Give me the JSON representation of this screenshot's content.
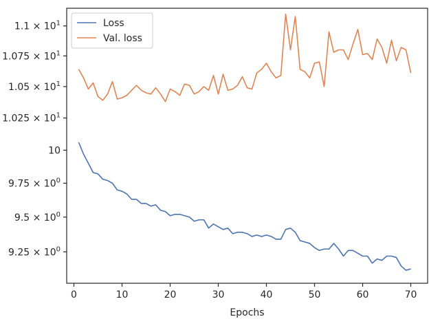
{
  "chart_data": {
    "type": "line",
    "title": "",
    "xlabel": "Epochs",
    "ylabel": "",
    "xlim": [
      -1.5,
      73.5
    ],
    "ylim": [
      9.03,
      11.15
    ],
    "y_scale": "log",
    "grid": false,
    "legend_position": "top-left",
    "x_ticks": [
      0,
      10,
      20,
      30,
      40,
      50,
      60,
      70
    ],
    "x_tick_labels": [
      "0",
      "10",
      "20",
      "30",
      "40",
      "50",
      "60",
      "70"
    ],
    "y_ticks": [
      9.25,
      9.5,
      9.75,
      10,
      10.25,
      10.5,
      10.75,
      11.0
    ],
    "y_tick_labels": [
      "9.25 × 10^0",
      "9.5 × 10^0",
      "9.75 × 10^0",
      "10",
      "1.025 × 10^1",
      "1.05 × 10^1",
      "1.075 × 10^1",
      "1.1 × 10^1"
    ],
    "series": [
      {
        "name": "Loss",
        "color": "#4c72b0",
        "x": [
          1,
          2,
          3,
          4,
          5,
          6,
          7,
          8,
          9,
          10,
          11,
          12,
          13,
          14,
          15,
          16,
          17,
          18,
          19,
          20,
          21,
          22,
          23,
          24,
          25,
          26,
          27,
          28,
          29,
          30,
          31,
          32,
          33,
          34,
          35,
          36,
          37,
          38,
          39,
          40,
          41,
          42,
          43,
          44,
          45,
          46,
          47,
          48,
          49,
          50,
          51,
          52,
          53,
          54,
          55,
          56,
          57,
          58,
          59,
          60,
          61,
          62,
          63,
          64,
          65,
          66,
          67,
          68,
          69,
          70
        ],
        "values": [
          10.06,
          9.97,
          9.9,
          9.83,
          9.82,
          9.78,
          9.77,
          9.75,
          9.7,
          9.69,
          9.67,
          9.63,
          9.63,
          9.6,
          9.6,
          9.58,
          9.59,
          9.55,
          9.54,
          9.51,
          9.52,
          9.52,
          9.51,
          9.5,
          9.47,
          9.48,
          9.48,
          9.42,
          9.45,
          9.43,
          9.41,
          9.42,
          9.38,
          9.39,
          9.39,
          9.38,
          9.36,
          9.37,
          9.36,
          9.37,
          9.36,
          9.34,
          9.34,
          9.41,
          9.42,
          9.39,
          9.33,
          9.32,
          9.31,
          9.28,
          9.26,
          9.27,
          9.27,
          9.31,
          9.27,
          9.22,
          9.26,
          9.26,
          9.24,
          9.22,
          9.22,
          9.17,
          9.2,
          9.19,
          9.22,
          9.22,
          9.21,
          9.15,
          9.12,
          9.13
        ]
      },
      {
        "name": "Val. loss",
        "color": "#dd8452",
        "x": [
          1,
          2,
          3,
          4,
          5,
          6,
          7,
          8,
          9,
          10,
          11,
          12,
          13,
          14,
          15,
          16,
          17,
          18,
          19,
          20,
          21,
          22,
          23,
          24,
          25,
          26,
          27,
          28,
          29,
          30,
          31,
          32,
          33,
          34,
          35,
          36,
          37,
          38,
          39,
          40,
          41,
          42,
          43,
          44,
          45,
          46,
          47,
          48,
          49,
          50,
          51,
          52,
          53,
          54,
          55,
          56,
          57,
          58,
          59,
          60,
          61,
          62,
          63,
          64,
          65,
          66,
          67,
          68,
          69,
          70
        ],
        "values": [
          10.64,
          10.57,
          10.48,
          10.53,
          10.42,
          10.39,
          10.44,
          10.54,
          10.4,
          10.41,
          10.43,
          10.47,
          10.51,
          10.47,
          10.45,
          10.44,
          10.49,
          10.44,
          10.38,
          10.48,
          10.46,
          10.43,
          10.52,
          10.51,
          10.44,
          10.46,
          10.5,
          10.47,
          10.59,
          10.44,
          10.6,
          10.47,
          10.48,
          10.51,
          10.58,
          10.49,
          10.48,
          10.61,
          10.64,
          10.69,
          10.62,
          10.57,
          10.59,
          11.1,
          10.8,
          11.08,
          10.64,
          10.62,
          10.57,
          10.69,
          10.7,
          10.5,
          10.95,
          10.78,
          10.8,
          10.8,
          10.72,
          10.85,
          10.97,
          10.76,
          10.77,
          10.72,
          10.89,
          10.82,
          10.69,
          10.88,
          10.71,
          10.82,
          10.8,
          10.61
        ]
      }
    ]
  }
}
